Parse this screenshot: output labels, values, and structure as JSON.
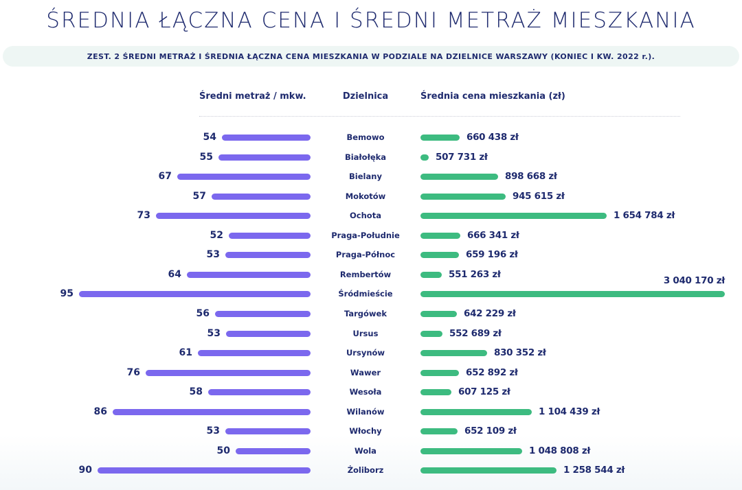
{
  "title": "ŚREDNIA ŁĄCZNA CENA I ŚREDNI METRAŻ MIESZKANIA",
  "subtitle": "ZEST. 2 ŚREDNI METRAŻ I ŚREDNIA ŁĄCZNA CENA MIESZKANIA W PODZIALE NA DZIELNICE WARSZAWY (KONIEC I KW. 2022 r.).",
  "headers": {
    "left": "Średni metraż / mkw.",
    "middle": "Dzielnica",
    "right": "Średnia cena mieszkania (zł)"
  },
  "colors": {
    "area_bar": "#7b68ee",
    "price_bar": "#3dbb80",
    "text": "#1e2a6e"
  },
  "rows": [
    {
      "district": "Bemowo",
      "area": "54",
      "price": "660 438 zł",
      "lw": 129,
      "rw": 57
    },
    {
      "district": "Białołęka",
      "area": "55",
      "price": "507 731 zł",
      "lw": 134,
      "rw": 12
    },
    {
      "district": "Bielany",
      "area": "67",
      "price": "898 668 zł",
      "lw": 194,
      "rw": 113
    },
    {
      "district": "Mokotów",
      "area": "57",
      "price": "945 615 zł",
      "lw": 144,
      "rw": 124
    },
    {
      "district": "Ochota",
      "area": "73",
      "price": "1 654 784 zł",
      "lw": 225,
      "rw": 271
    },
    {
      "district": "Praga-Południe",
      "area": "52",
      "price": "666 341 zł",
      "lw": 119,
      "rw": 58
    },
    {
      "district": "Praga-Północ",
      "area": "53",
      "price": "659 196 zł",
      "lw": 124,
      "rw": 56
    },
    {
      "district": "Rembertów",
      "area": "64",
      "price": "551 263 zł",
      "lw": 180,
      "rw": 31
    },
    {
      "district": "Śródmieście",
      "area": "95",
      "price": "3 040 170 zł",
      "lw": 337,
      "rw": 443,
      "label_above": true
    },
    {
      "district": "Targówek",
      "area": "56",
      "price": "642 229 zł",
      "lw": 139,
      "rw": 53
    },
    {
      "district": "Ursus",
      "area": "53",
      "price": "552 689 zł",
      "lw": 123,
      "rw": 32
    },
    {
      "district": "Ursynów",
      "area": "61",
      "price": "830 352 zł",
      "lw": 164,
      "rw": 97
    },
    {
      "district": "Wawer",
      "area": "76",
      "price": "652 892 zł",
      "lw": 240,
      "rw": 56
    },
    {
      "district": "Wesoła",
      "area": "58",
      "price": "607 125 zł",
      "lw": 149,
      "rw": 45
    },
    {
      "district": "Wilanów",
      "area": "86",
      "price": "1 104 439 zł",
      "lw": 288,
      "rw": 162
    },
    {
      "district": "Włochy",
      "area": "53",
      "price": "652 109 zł",
      "lw": 124,
      "rw": 54
    },
    {
      "district": "Wola",
      "area": "50",
      "price": "1 048 808 zł",
      "lw": 109,
      "rw": 148
    },
    {
      "district": "Żoliborz",
      "area": "90",
      "price": "1 258 544 zł",
      "lw": 310,
      "rw": 198
    }
  ],
  "chart_data": {
    "type": "bar",
    "title": "ŚREDNIA ŁĄCZNA CENA I ŚREDNI METRAŻ MIESZKANIA",
    "subtitle": "ZEST. 2 ŚREDNI METRAŻ I ŚREDNIA ŁĄCZNA CENA MIESZKANIA W PODZIALE NA DZIELNICE WARSZAWY (KONIEC I KW. 2022 r.).",
    "orientation": "horizontal-butterfly",
    "categories": [
      "Bemowo",
      "Białołęka",
      "Bielany",
      "Mokotów",
      "Ochota",
      "Praga-Południe",
      "Praga-Północ",
      "Rembertów",
      "Śródmieście",
      "Targówek",
      "Ursus",
      "Ursynów",
      "Wawer",
      "Wesoła",
      "Wilanów",
      "Włochy",
      "Wola",
      "Żoliborz"
    ],
    "series": [
      {
        "name": "Średni metraż / mkw.",
        "color": "#7b68ee",
        "side": "left",
        "values": [
          54,
          55,
          67,
          57,
          73,
          52,
          53,
          64,
          95,
          56,
          53,
          61,
          76,
          58,
          86,
          53,
          50,
          90
        ]
      },
      {
        "name": "Średnia cena mieszkania (zł)",
        "color": "#3dbb80",
        "side": "right",
        "values": [
          660438,
          507731,
          898668,
          945615,
          1654784,
          666341,
          659196,
          551263,
          3040170,
          642229,
          552689,
          830352,
          652892,
          607125,
          1104439,
          652109,
          1048808,
          1258544
        ]
      }
    ],
    "xlabel": "",
    "ylabel": "Dzielnica",
    "grid": false,
    "legend": "column headers"
  }
}
